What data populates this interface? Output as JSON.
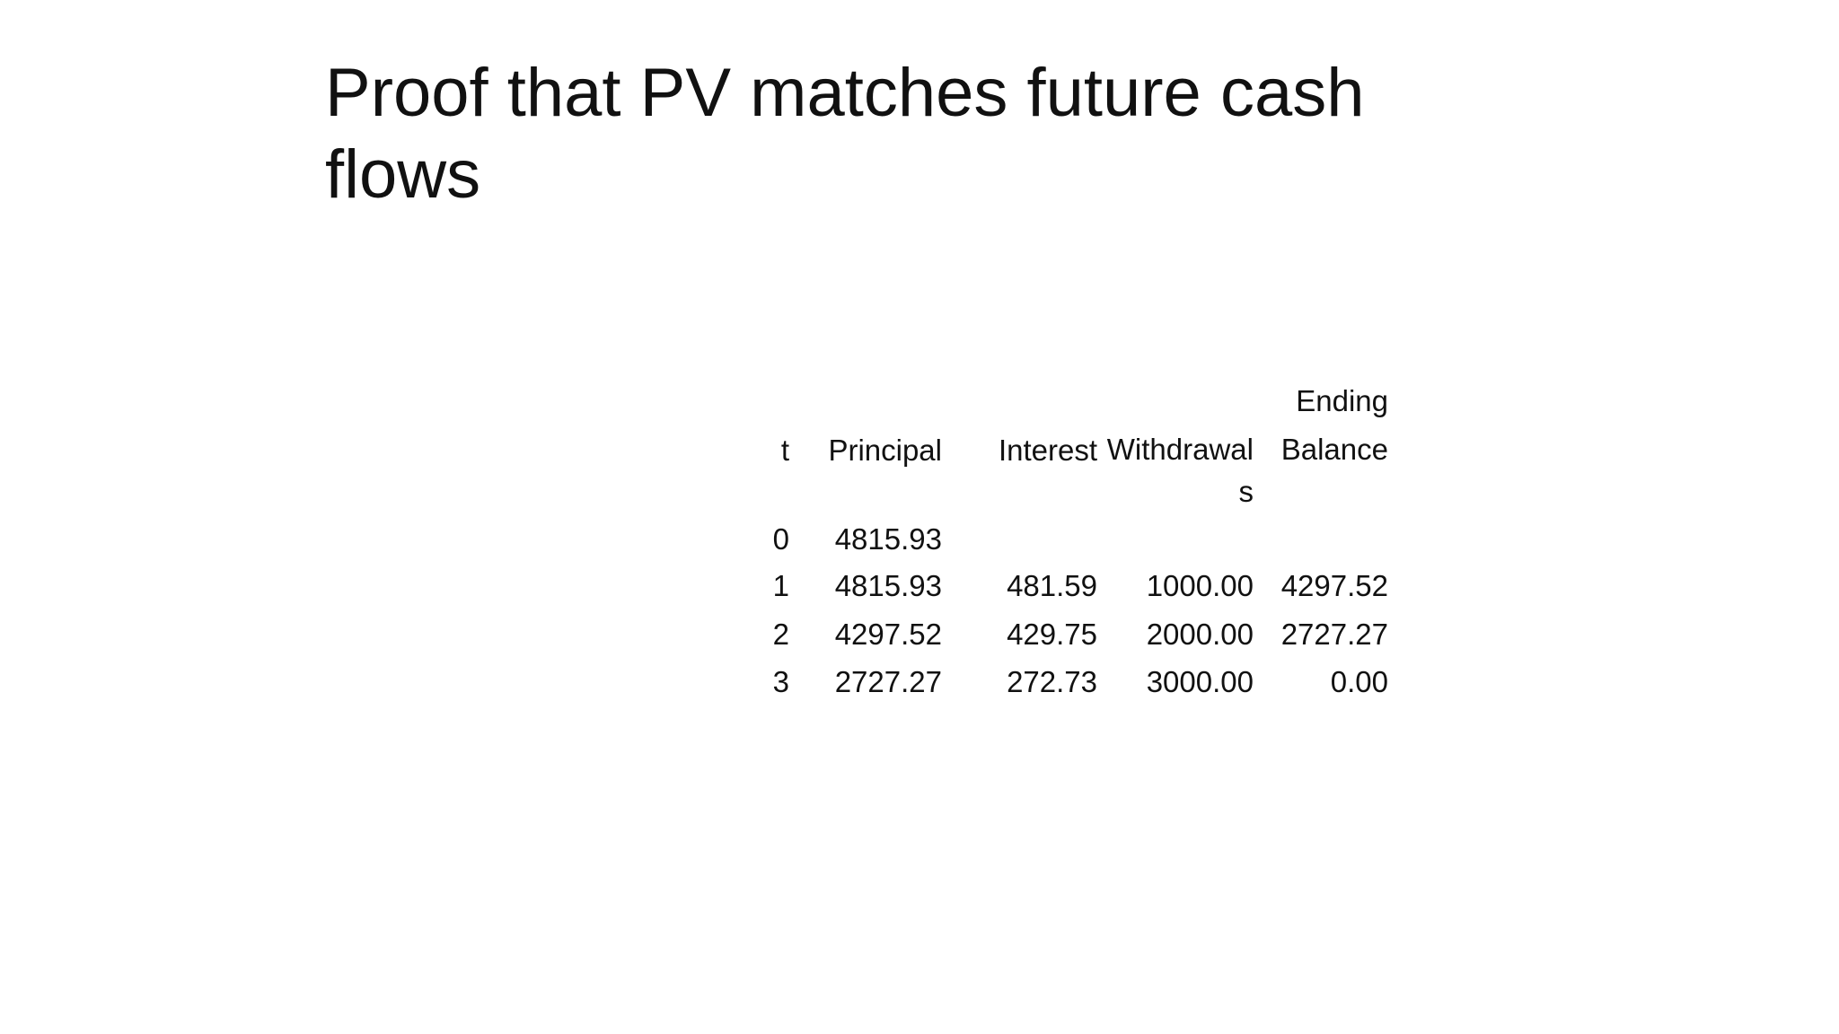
{
  "title": "Proof that PV matches future cash flows",
  "table": {
    "header": [
      "t",
      "Principal",
      "Interest",
      "Withdrawals",
      "Ending Balance"
    ],
    "rows": [
      [
        "0",
        "4815.93"
      ],
      [
        "1",
        "4815.93",
        "481.59",
        "1000.00",
        "4297.52"
      ],
      [
        "2",
        "4297.52",
        "429.75",
        "2000.00",
        "2727.27"
      ],
      [
        "3",
        "2727.27",
        "272.73",
        "3000.00",
        "0.00"
      ]
    ]
  }
}
